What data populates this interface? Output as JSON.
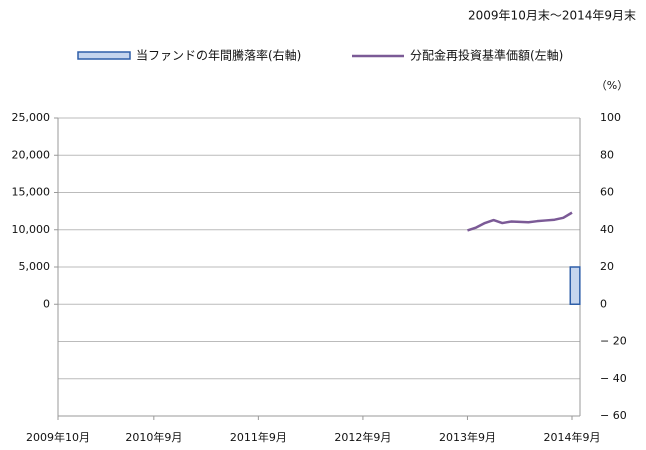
{
  "chart_data": {
    "type": "bar-line",
    "subtitle": "2009年10月末～2014年9月末",
    "y2_unit": "（%）",
    "categories": [
      "2009年10月",
      null,
      null,
      null,
      null,
      null,
      null,
      null,
      null,
      null,
      null,
      "2010年9月",
      null,
      null,
      null,
      null,
      null,
      null,
      null,
      null,
      null,
      null,
      null,
      "2011年9月",
      null,
      null,
      null,
      null,
      null,
      null,
      null,
      null,
      null,
      null,
      null,
      "2012年9月",
      null,
      null,
      null,
      null,
      null,
      null,
      null,
      null,
      null,
      null,
      null,
      "2013年9月",
      null,
      null,
      null,
      null,
      null,
      null,
      null,
      null,
      null,
      null,
      null,
      "2014年9月"
    ],
    "series": [
      {
        "name": "当ファンドの年間騰落率(右軸)",
        "type": "bar",
        "axis": "y2",
        "color": "#c5d5ee",
        "edge_color": "#2f5fa8",
        "values": [
          null,
          null,
          null,
          null,
          null,
          null,
          null,
          null,
          null,
          null,
          null,
          null,
          null,
          null,
          null,
          null,
          null,
          null,
          null,
          null,
          null,
          null,
          null,
          null,
          null,
          null,
          null,
          null,
          null,
          null,
          null,
          null,
          null,
          null,
          null,
          null,
          null,
          null,
          null,
          null,
          null,
          null,
          null,
          null,
          null,
          null,
          null,
          null,
          null,
          null,
          null,
          null,
          null,
          null,
          null,
          null,
          null,
          null,
          null,
          20
        ]
      },
      {
        "name": "分配金再投資基準価額(左軸)",
        "type": "line",
        "axis": "y",
        "color": "#7b5a96",
        "values": [
          null,
          null,
          null,
          null,
          null,
          null,
          null,
          null,
          null,
          null,
          null,
          null,
          null,
          null,
          null,
          null,
          null,
          null,
          null,
          null,
          null,
          null,
          null,
          null,
          null,
          null,
          null,
          null,
          null,
          null,
          null,
          null,
          null,
          null,
          null,
          null,
          null,
          null,
          null,
          null,
          null,
          null,
          null,
          null,
          null,
          null,
          null,
          9900,
          10300,
          10900,
          11300,
          10900,
          11100,
          11050,
          11000,
          11150,
          11250,
          11350,
          11600,
          12300
        ]
      }
    ],
    "ylim": [
      -15000,
      25000
    ],
    "yticks": [
      {
        "value": 0,
        "label": "0"
      },
      {
        "value": 5000,
        "label": "5,000"
      },
      {
        "value": 10000,
        "label": "10,000"
      },
      {
        "value": 15000,
        "label": "15,000"
      },
      {
        "value": 20000,
        "label": "20,000"
      },
      {
        "value": 25000,
        "label": "25,000"
      }
    ],
    "y2lim": [
      -60,
      100
    ],
    "y2ticks": [
      {
        "value": -60,
        "label": "− 60"
      },
      {
        "value": -40,
        "label": "− 40"
      },
      {
        "value": -20,
        "label": "− 20"
      },
      0,
      20,
      40,
      60,
      80,
      100
    ],
    "grid": true
  }
}
